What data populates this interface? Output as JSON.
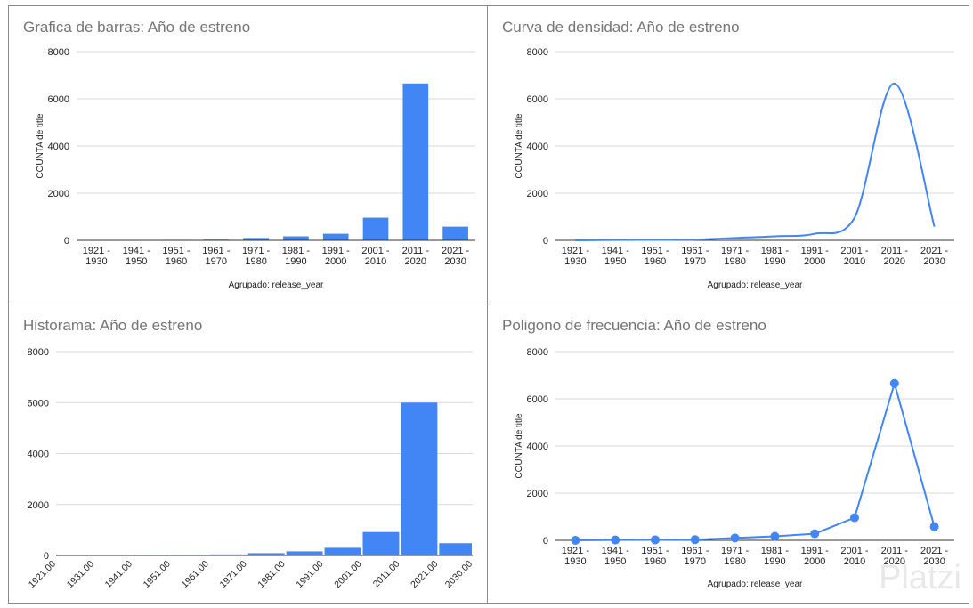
{
  "chart_data": [
    {
      "type": "bar",
      "title": "Grafica de barras: Año de estreno",
      "xlabel": "Agrupado: release_year",
      "ylabel": "COUNTA de title",
      "ylim": [
        0,
        8000
      ],
      "yticks": [
        "0",
        "2000",
        "4000",
        "6000",
        "8000"
      ],
      "categories": [
        "1921 -|1930",
        "1941 -|1950",
        "1951 -|1960",
        "1961 -|1970",
        "1971 -|1980",
        "1981 -|1990",
        "1991 -|2000",
        "2001 -|2010",
        "2011 -|2020",
        "2021 -|2030"
      ],
      "values": [
        2,
        15,
        20,
        30,
        100,
        170,
        280,
        960,
        6650,
        580
      ],
      "color": "#4285f4",
      "grid": true
    },
    {
      "type": "line",
      "title": "Curva de densidad: Año de estreno",
      "xlabel": "Agrupado: release_year",
      "ylabel": "COUNTA de title",
      "ylim": [
        0,
        8000
      ],
      "yticks": [
        "0",
        "2000",
        "4000",
        "6000",
        "8000"
      ],
      "categories": [
        "1921 -|1930",
        "1941 -|1950",
        "1951 -|1960",
        "1961 -|1970",
        "1971 -|1980",
        "1981 -|1990",
        "1991 -|2000",
        "2001 -|2010",
        "2011 -|2020",
        "2021 -|2030"
      ],
      "values": [
        2,
        15,
        20,
        30,
        100,
        170,
        280,
        960,
        6650,
        580
      ],
      "smooth": true,
      "color": "#4285f4",
      "grid": true
    },
    {
      "type": "bar",
      "title": "Historama: Año de estreno",
      "xlabel": "",
      "ylabel": "",
      "ylim": [
        0,
        8000
      ],
      "yticks": [
        "0",
        "2000",
        "4000",
        "6000",
        "8000"
      ],
      "xticks": [
        "1921.00",
        "1931.00",
        "1941.00",
        "1951.00",
        "1961.00",
        "1971.00",
        "1981.00",
        "1991.00",
        "2001.00",
        "2011.00",
        "2021.00",
        "2030.00"
      ],
      "bins": [
        [
          1921,
          1931
        ],
        [
          1931,
          1941
        ],
        [
          1941,
          1951
        ],
        [
          1951,
          1961
        ],
        [
          1961,
          1971
        ],
        [
          1971,
          1981
        ],
        [
          1981,
          1991
        ],
        [
          1991,
          2001
        ],
        [
          2001,
          2011
        ],
        [
          2011,
          2021
        ],
        [
          2021,
          2030
        ]
      ],
      "values": [
        5,
        10,
        20,
        25,
        40,
        90,
        160,
        300,
        920,
        6000,
        480
      ],
      "color": "#4285f4",
      "grid": true
    },
    {
      "type": "line",
      "title": "Poligono de frecuencia: Año de estreno",
      "xlabel": "Agrupado: release_year",
      "ylabel": "COUNTA de title",
      "ylim": [
        0,
        8000
      ],
      "yticks": [
        "0",
        "2000",
        "4000",
        "6000",
        "8000"
      ],
      "categories": [
        "1921 -|1930",
        "1941 -|1950",
        "1951 -|1960",
        "1961 -|1970",
        "1971 -|1980",
        "1981 -|1990",
        "1991 -|2000",
        "2001 -|2010",
        "2011 -|2020",
        "2021 -|2030"
      ],
      "values": [
        2,
        15,
        20,
        30,
        100,
        170,
        280,
        960,
        6650,
        580
      ],
      "markers": true,
      "color": "#4285f4",
      "grid": true
    }
  ],
  "watermark": "Platzi"
}
